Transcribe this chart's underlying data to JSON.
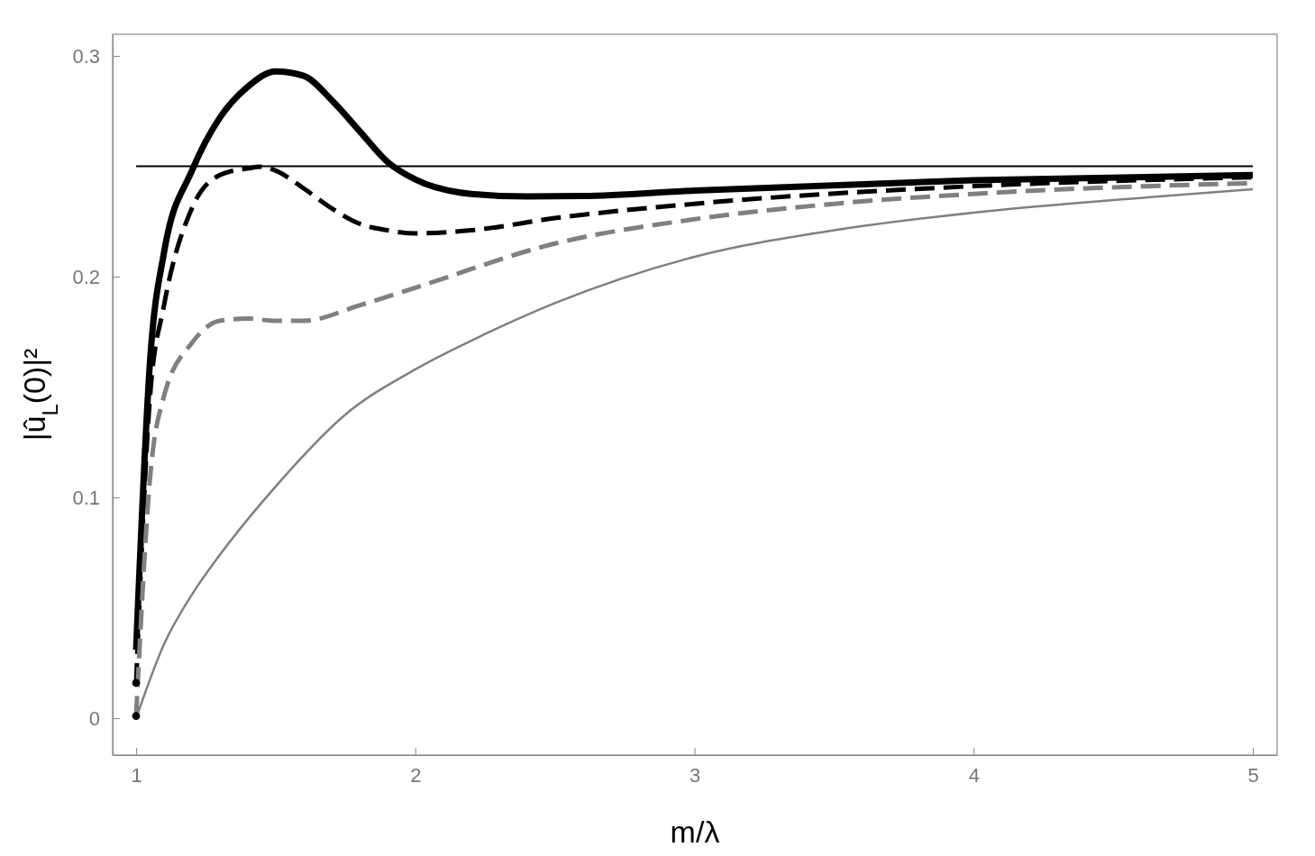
{
  "chart_data": {
    "type": "line",
    "xlabel": "m/λ",
    "ylabel": "|û$_{L}$(0)|²",
    "xlim": [
      0.916,
      5.087
    ],
    "ylim": [
      -0.0167,
      0.3098
    ],
    "xticks": [
      1,
      2,
      3,
      4,
      5
    ],
    "yticks": [
      0,
      0.1,
      0.2,
      0.3
    ],
    "grid": false,
    "marker": "none",
    "series": [
      {
        "color": "#000000",
        "line_style": "solid",
        "x": [
          1,
          1.05,
          1.1,
          1.2,
          1.3,
          1.4,
          1.5,
          1.6,
          1.7,
          1.8,
          1.9,
          2,
          2.2,
          2.4,
          2.6,
          3,
          4,
          5
        ],
        "values": [
          0.031,
          0.162,
          0.211,
          0.248,
          0.272,
          0.286,
          0.293,
          0.291,
          0.28,
          0.266,
          0.252,
          0.244,
          0.2375,
          0.2363,
          0.2365,
          0.239,
          0.2437,
          0.246
        ]
      },
      {
        "color": "#000000",
        "line_style": "dashed",
        "x": [
          1,
          1.05,
          1.1,
          1.2,
          1.3,
          1.4,
          1.45,
          1.5,
          1.6,
          1.7,
          1.8,
          1.9,
          2,
          2.2,
          2.5,
          3,
          4,
          5
        ],
        "values": [
          0.016,
          0.146,
          0.187,
          0.231,
          0.246,
          0.249,
          0.2498,
          0.248,
          0.24,
          0.231,
          0.224,
          0.221,
          0.2196,
          0.221,
          0.2265,
          0.233,
          0.241,
          0.245
        ]
      },
      {
        "color": "#808080",
        "line_style": "dashed",
        "x": [
          1,
          1.05,
          1.1,
          1.2,
          1.3,
          1.4,
          1.5,
          1.6,
          1.8,
          2,
          2.5,
          3,
          3.5,
          4,
          5
        ],
        "values": [
          0.001,
          0.109,
          0.146,
          0.17,
          0.18,
          0.181,
          0.18,
          0.18,
          0.187,
          0.195,
          0.215,
          0.226,
          0.233,
          0.2375,
          0.2424
        ]
      },
      {
        "color": "#808080",
        "line_style": "solid",
        "x": [
          1,
          1.1,
          1.2,
          1.3,
          1.5,
          1.75,
          2,
          2.25,
          2.5,
          3,
          3.5,
          4,
          4.5,
          5
        ],
        "values": [
          0,
          0.0335,
          0.056,
          0.074,
          0.105,
          0.1376,
          0.158,
          0.174,
          0.188,
          0.209,
          0.221,
          0.229,
          0.2347,
          0.2396
        ]
      },
      {
        "color": "#000000",
        "line_style": "solid",
        "x": [
          1,
          5
        ],
        "values": [
          0.25,
          0.25
        ]
      },
      {
        "type": "scatter",
        "marker": "circle",
        "color": "#000000",
        "x": [
          1,
          1
        ],
        "values": [
          0.016,
          0.001
        ]
      }
    ]
  }
}
